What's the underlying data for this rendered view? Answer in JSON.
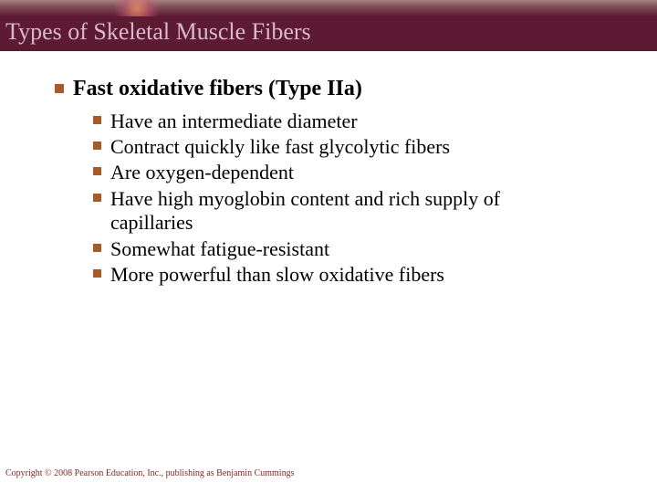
{
  "banner": {
    "title": "Types of Skeletal Muscle Fibers",
    "background_color": "#5c1a33",
    "title_color": "#d9b9c5",
    "title_fontsize": 26
  },
  "bullet_color": "#a85a2a",
  "main": {
    "heading": "Fast oxidative fibers (Type IIa)",
    "heading_fontsize": 24,
    "heading_weight": "bold",
    "text_color": "#000000",
    "items": [
      "Have an intermediate diameter",
      "Contract quickly like fast glycolytic fibers",
      "Are oxygen-dependent",
      "Have high myoglobin content and rich supply of capillaries",
      "Somewhat fatigue-resistant",
      "More powerful than slow oxidative fibers"
    ],
    "item_fontsize": 22
  },
  "copyright": {
    "text": "Copyright © 2008 Pearson Education, Inc., publishing as Benjamin Cummings",
    "color": "#7a2a2a",
    "fontsize": 10
  }
}
